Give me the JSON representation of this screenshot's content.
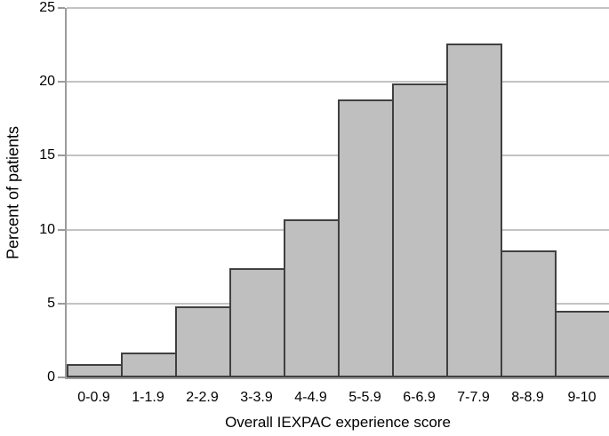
{
  "figure": {
    "background": "#ffffff"
  },
  "chart_data": {
    "type": "bar",
    "title": "",
    "categories": [
      "0-0.9",
      "1-1.9",
      "2-2.9",
      "3-3.9",
      "4-4.9",
      "5-5.9",
      "6-6.9",
      "7-7.9",
      "8-8.9",
      "9-10"
    ],
    "values": [
      0.9,
      1.7,
      4.8,
      7.4,
      10.7,
      18.8,
      19.9,
      22.6,
      8.6,
      4.5
    ],
    "xlabel": "Overall IEXPAC experience score",
    "ylabel": "Percent of patients",
    "ylim": [
      0,
      25
    ],
    "yticks": [
      0,
      5,
      10,
      15,
      20,
      25
    ],
    "grid": true,
    "legend": false,
    "bar_fill_color": "#bfbfbf",
    "bar_border_color": "#404040",
    "gridline_color": "#c3c3c3",
    "axis_color": "#9b9b9b",
    "text_color": "#000000"
  }
}
